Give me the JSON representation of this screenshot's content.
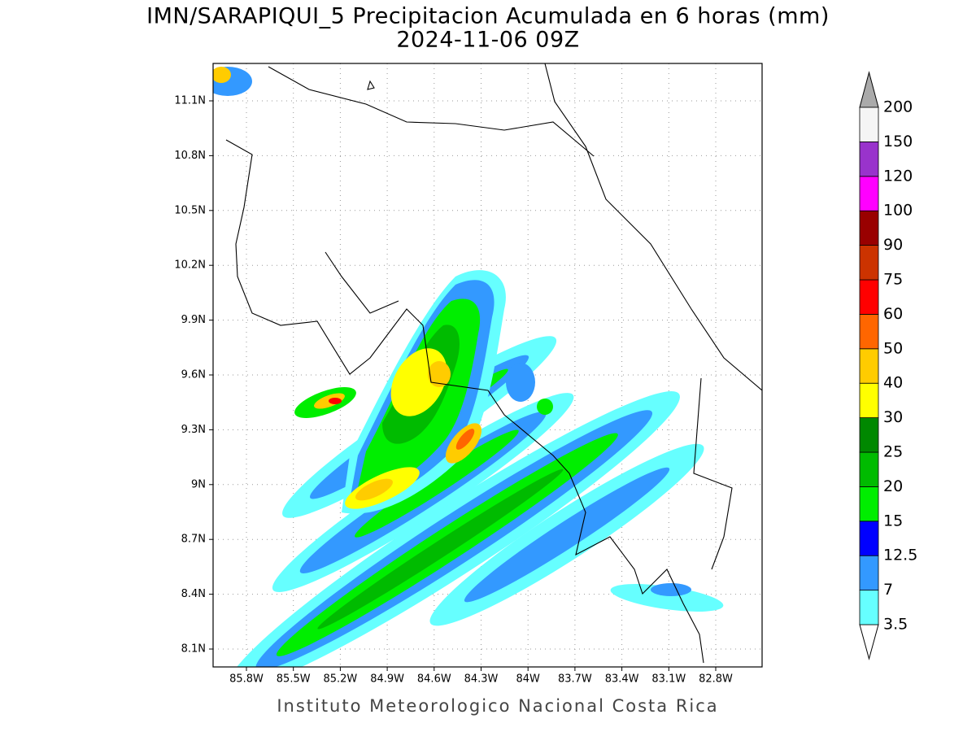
{
  "map": {
    "title": "IMN/SARAPIQUI_5 Precipitacion Acumulada en 6 horas (mm)",
    "subtitle": "2024-11-06 09Z",
    "lon_ticks": [
      "85.8W",
      "85.5W",
      "85.2W",
      "84.9W",
      "84.6W",
      "84.3W",
      "84W",
      "83.7W",
      "83.4W",
      "83.1W",
      "82.8W"
    ],
    "lat_ticks": [
      "11.1N",
      "10.8N",
      "10.5N",
      "10.2N",
      "9.9N",
      "9.6N",
      "9.3N",
      "9N",
      "8.7N",
      "8.4N",
      "8.1N"
    ],
    "colorbar": {
      "levels": [
        3.5,
        7,
        12.5,
        15,
        20,
        25,
        30,
        40,
        50,
        60,
        75,
        90,
        100,
        120,
        150,
        200
      ],
      "colors": [
        "#ffffff",
        "#66ffff",
        "#3399ff",
        "#0000ff",
        "#00ee00",
        "#00bb00",
        "#008800",
        "#ffff00",
        "#ffcc00",
        "#ff6600",
        "#ff0000",
        "#cc3300",
        "#990000",
        "#ff00ff",
        "#9933cc",
        "#f5f5f5",
        "#aaaaaa"
      ]
    },
    "footer": "Instituto Meteorologico Nacional Costa Rica"
  }
}
